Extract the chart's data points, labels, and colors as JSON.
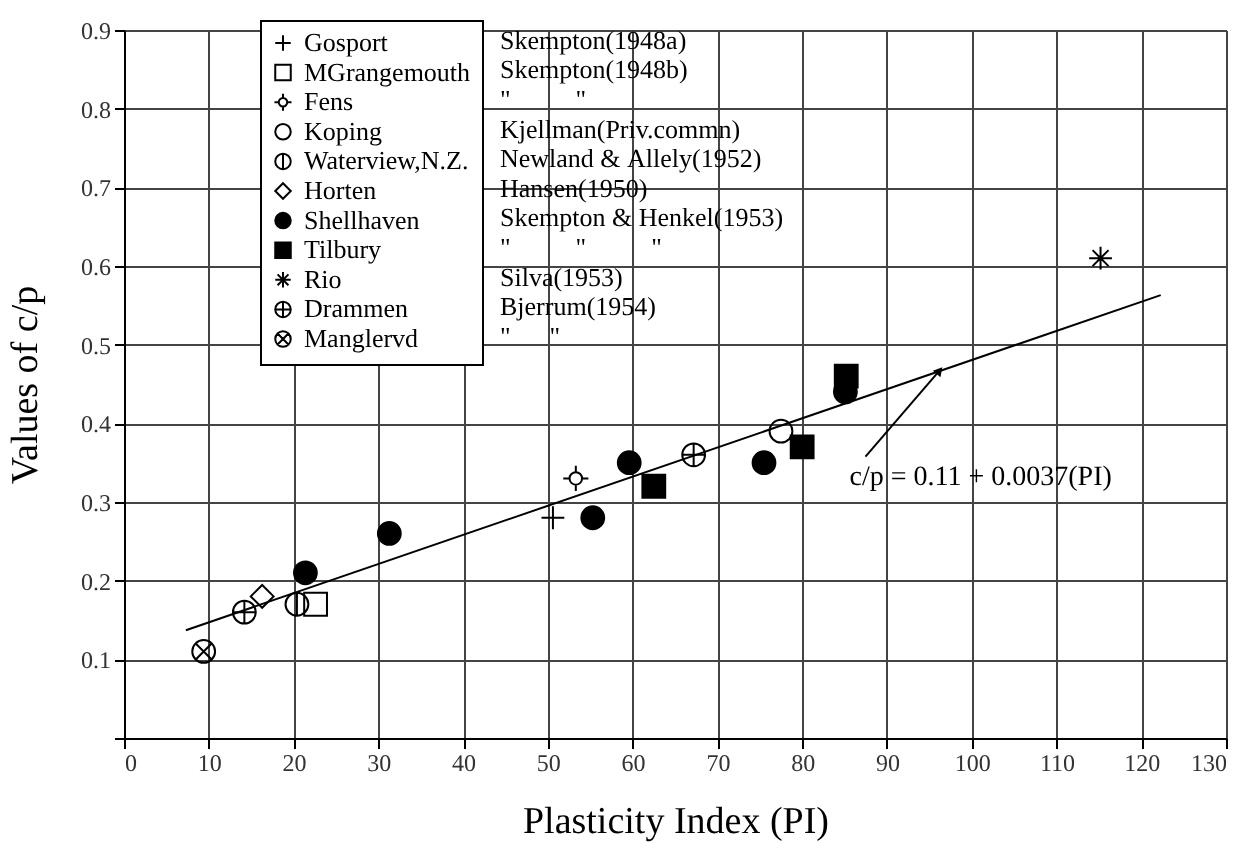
{
  "chart_data": {
    "type": "scatter",
    "xlabel": "Plasticity Index (PI)",
    "ylabel": "Values of c/p",
    "xlim": [
      0,
      130
    ],
    "ylim": [
      0,
      0.9
    ],
    "xticks": [
      0,
      10,
      20,
      30,
      40,
      50,
      60,
      70,
      80,
      90,
      100,
      110,
      120,
      130
    ],
    "yticks": [
      {
        "value": 0,
        "label": null
      },
      0.1,
      0.2,
      0.3,
      0.4,
      0.5,
      0.6,
      0.7,
      0.8,
      0.9
    ],
    "grid": true,
    "legend": "top left",
    "annotations": [
      "Skempton(1948a)",
      "Skempton(1948b)",
      "\"          \"",
      "Kjellman(Priv.commn)",
      "Newland & Allely(1952)",
      "Hansen(1950)",
      "Skempton & Henkel(1953)",
      "\"          \"          \"",
      "Silva(1953)",
      "Bjerrum(1954)",
      "\"      \"",
      {
        "text": "c/p = 0.11 + 0.0037(PI)",
        "x": 96.2,
        "y": 0.467
      }
    ],
    "series": [
      {
        "type": "line",
        "color": "#000000",
        "x": [
          7.3,
          122.3
        ],
        "values": [
          0.137,
          0.563
        ]
      },
      {
        "name": "Gosport",
        "color": "#000000",
        "marker": "cross",
        "x": [
          50.6
        ],
        "values": [
          0.28
        ]
      },
      {
        "name": "MGrangemouth",
        "color": "#000000",
        "marker": "square-open",
        "x": [
          22.6
        ],
        "values": [
          0.17
        ]
      },
      {
        "name": "Fens",
        "color": "#000000",
        "marker": "cross-tick",
        "x": [
          53.3
        ],
        "values": [
          0.33
        ]
      },
      {
        "name": "Koping",
        "color": "#000000",
        "marker": "circle-open",
        "x": [
          77.5
        ],
        "values": [
          0.39
        ]
      },
      {
        "name": "Waterview,N.Z.",
        "color": "#000000",
        "marker": "cross-vline",
        "x": [
          20.4
        ],
        "values": [
          0.17
        ]
      },
      {
        "name": "Horten",
        "color": "#000000",
        "marker": "diamond-open",
        "x": [
          16.3
        ],
        "values": [
          0.18
        ]
      },
      {
        "name": "Shellhaven",
        "color": "#000000",
        "marker": "circle",
        "x": [
          21.4,
          31.3,
          55.3,
          59.6,
          75.5,
          85.1
        ],
        "values": [
          0.21,
          0.26,
          0.28,
          0.35,
          0.35,
          0.44
        ]
      },
      {
        "name": "Tilbury",
        "color": "#000000",
        "marker": "square",
        "x": [
          62.5,
          80.0,
          85.2
        ],
        "values": [
          0.32,
          0.37,
          0.46
        ]
      },
      {
        "name": "Rio",
        "color": "#000000",
        "marker": "cross-asterisk",
        "x": [
          115.2
        ],
        "values": [
          0.61
        ]
      },
      {
        "name": "Drammen",
        "color": "#000000",
        "marker": "cross-ringed",
        "x": [
          14.2,
          67.2
        ],
        "values": [
          0.16,
          0.36
        ]
      },
      {
        "name": "Manglervd",
        "color": "#000000",
        "marker": "cross-x-ringed",
        "x": [
          9.4
        ],
        "values": [
          0.11
        ]
      }
    ]
  }
}
